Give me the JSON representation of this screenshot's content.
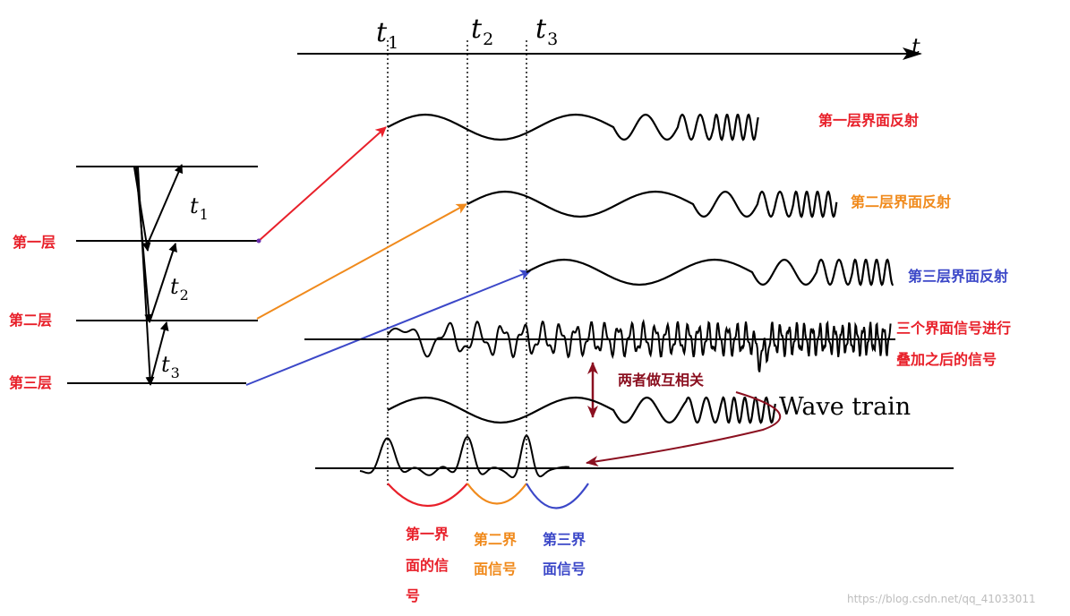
{
  "time_axis": {
    "axis_label": "t",
    "markers": [
      {
        "letter": "t",
        "sub": "1"
      },
      {
        "letter": "t",
        "sub": "2"
      },
      {
        "letter": "t",
        "sub": "3"
      }
    ]
  },
  "layers": {
    "labels": [
      "第一层",
      "第二层",
      "第三层"
    ],
    "ray_labels": [
      {
        "letter": "t",
        "sub": "1"
      },
      {
        "letter": "t",
        "sub": "2"
      },
      {
        "letter": "t",
        "sub": "3"
      }
    ]
  },
  "traces": {
    "reflection1": "第一层界面反射",
    "reflection2": "第二层界面反射",
    "reflection3": "第三层界面反射",
    "superposed_line1": "三个界面信号进行",
    "superposed_line2": "叠加之后的信号"
  },
  "correlation": {
    "label": "两者做互相关",
    "wave_train": "Wave train"
  },
  "result_groups": [
    {
      "lines": [
        "第一界",
        "面的信",
        "号"
      ]
    },
    {
      "lines": [
        "第二界",
        "面信号"
      ]
    },
    {
      "lines": [
        "第三界",
        "面信号"
      ]
    }
  ],
  "colors": {
    "red": "#e8202a",
    "orange": "#f08a1c",
    "blue": "#3c48c8",
    "maroon": "#8b1020",
    "black": "#000000"
  },
  "watermark": "https://blog.csdn.net/qq_41033011"
}
